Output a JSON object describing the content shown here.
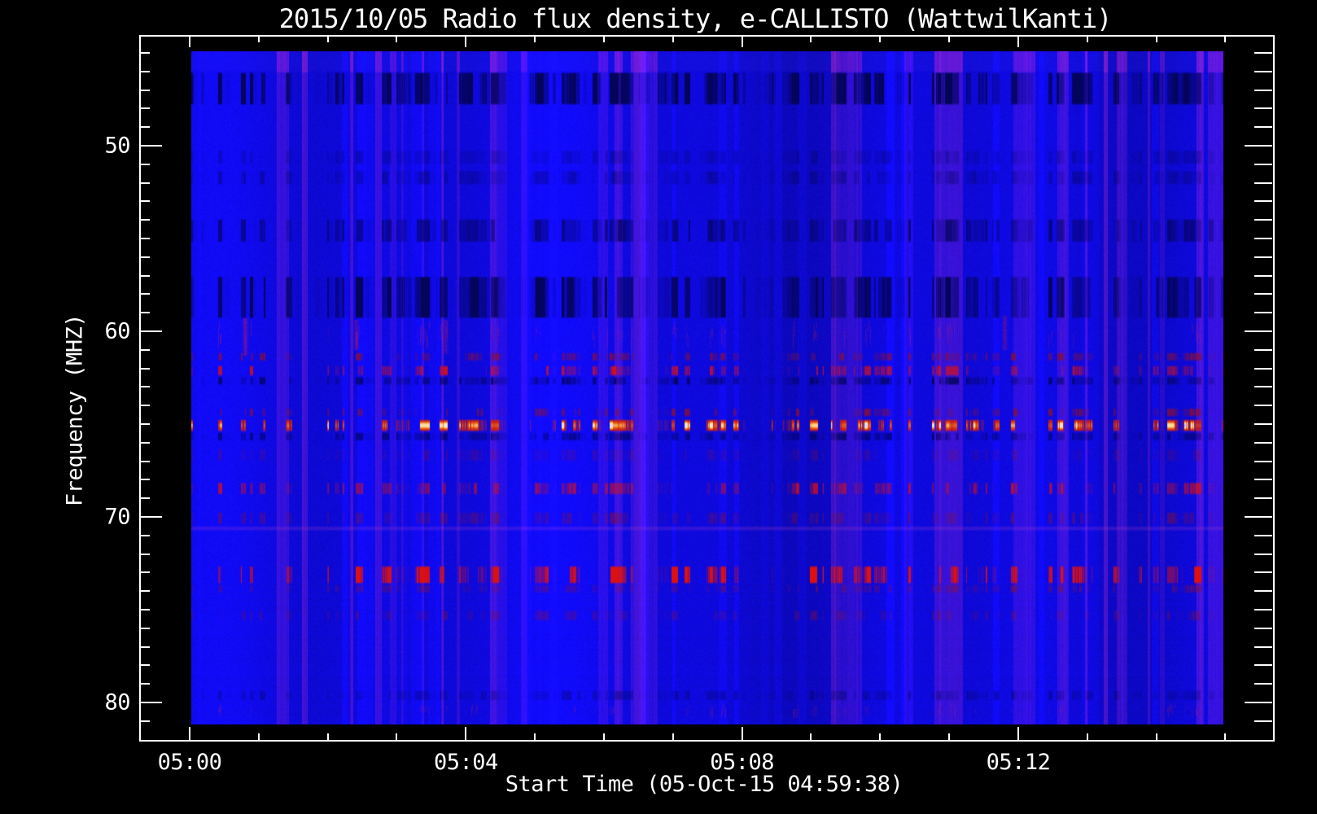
{
  "title": "2015/10/05  Radio flux density, e-CALLISTO (WattwilKanti)",
  "background_color": "#000000",
  "frame_color": "#ffffff",
  "text_color": "#ffffff",
  "x_axis": {
    "label": "Start Time (05-Oct-15 04:59:38)",
    "major_ticks": [
      {
        "minutes": 0,
        "label": "05:00"
      },
      {
        "minutes": 4,
        "label": "05:04"
      },
      {
        "minutes": 8,
        "label": "05:08"
      },
      {
        "minutes": 12,
        "label": "05:12"
      }
    ],
    "minor_tick_every_minutes": 1,
    "range_minutes": [
      0,
      15
    ]
  },
  "y_axis": {
    "label": "Frequency (MHZ)",
    "major_ticks": [
      50,
      60,
      70,
      80
    ],
    "minor_tick_every_mhz": 1,
    "range_mhz": [
      44.9,
      81.2
    ]
  },
  "chart_data": {
    "type": "heatmap",
    "title": "2015/10/05  Radio flux density, e-CALLISTO (WattwilKanti)",
    "date": "2015/10/05",
    "instrument": "e-CALLISTO",
    "station": "WattwilKanti",
    "start_time": "04:59:38",
    "xlabel": "Start Time (05-Oct-15 04:59:38)",
    "ylabel": "Frequency (MHZ)",
    "x_range_time": [
      "05:00",
      "05:15"
    ],
    "y_range_mhz": [
      44.9,
      81.2
    ],
    "legend": "none",
    "grid": "off",
    "colormap": {
      "background_blue": "#160ee4",
      "dark_dropout": "#04045a",
      "red_carrier": "#d21414",
      "bright_orange": "#ff9623",
      "pale_hot": "#ffd78c",
      "purple_column": "#6a2fd2"
    },
    "description": "Solar radio spectrogram: saturated blue background built of vertical time-interference stripes; horizontal RFI rows appear as time-dashed dark dropouts and red/orange carrier lines; strongest carrier near 65 MHz (orange) and 73 MHz (bright red).",
    "rfi_lines": [
      {
        "f0": 44.9,
        "f1": 46.0,
        "kind": "purple",
        "strength": 0.8
      },
      {
        "f0": 46.0,
        "f1": 47.8,
        "kind": "dark",
        "strength": 0.95
      },
      {
        "f0": 50.2,
        "f1": 51.0,
        "kind": "dark",
        "strength": 0.25
      },
      {
        "f0": 51.3,
        "f1": 52.1,
        "kind": "dark",
        "strength": 0.3
      },
      {
        "f0": 53.9,
        "f1": 55.2,
        "kind": "dark",
        "strength": 0.55
      },
      {
        "f0": 57.0,
        "f1": 59.3,
        "kind": "dark",
        "strength": 0.8
      },
      {
        "f0": 59.4,
        "f1": 61.0,
        "kind": "redsmudge",
        "strength": 0.5
      },
      {
        "f0": 61.1,
        "f1": 61.6,
        "kind": "darkred",
        "strength": 0.6
      },
      {
        "f0": 61.8,
        "f1": 62.4,
        "kind": "red",
        "strength": 0.7
      },
      {
        "f0": 62.4,
        "f1": 62.9,
        "kind": "dark",
        "strength": 0.6
      },
      {
        "f0": 64.1,
        "f1": 64.6,
        "kind": "darkred",
        "strength": 0.6
      },
      {
        "f0": 64.7,
        "f1": 65.4,
        "kind": "orange",
        "strength": 1.0
      },
      {
        "f0": 65.4,
        "f1": 65.9,
        "kind": "dark",
        "strength": 0.55
      },
      {
        "f0": 66.3,
        "f1": 67.0,
        "kind": "darkred",
        "strength": 0.2
      },
      {
        "f0": 68.1,
        "f1": 68.8,
        "kind": "red",
        "strength": 0.55
      },
      {
        "f0": 69.7,
        "f1": 70.4,
        "kind": "darkred",
        "strength": 0.35
      },
      {
        "f0": 70.45,
        "f1": 70.75,
        "kind": "purpleline",
        "strength": 0.5
      },
      {
        "f0": 72.6,
        "f1": 73.6,
        "kind": "red",
        "strength": 0.95
      },
      {
        "f0": 73.6,
        "f1": 74.1,
        "kind": "darkred",
        "strength": 0.4
      },
      {
        "f0": 75.0,
        "f1": 75.6,
        "kind": "darkred",
        "strength": 0.3
      },
      {
        "f0": 79.3,
        "f1": 79.9,
        "kind": "dark",
        "strength": 0.3
      },
      {
        "f0": 80.0,
        "f1": 80.8,
        "kind": "redsmudge",
        "strength": 0.35
      }
    ],
    "notable_streaks": [
      {
        "minute": 0.8,
        "f0": 59.3,
        "f1": 61.3,
        "strength": 0.8
      },
      {
        "minute": 2.4,
        "f0": 59.4,
        "f1": 61.0,
        "strength": 0.6
      },
      {
        "minute": 3.7,
        "f0": 59.4,
        "f1": 61.2,
        "strength": 0.5
      },
      {
        "minute": 11.8,
        "f0": 59.2,
        "f1": 61.0,
        "strength": 0.6
      }
    ]
  }
}
